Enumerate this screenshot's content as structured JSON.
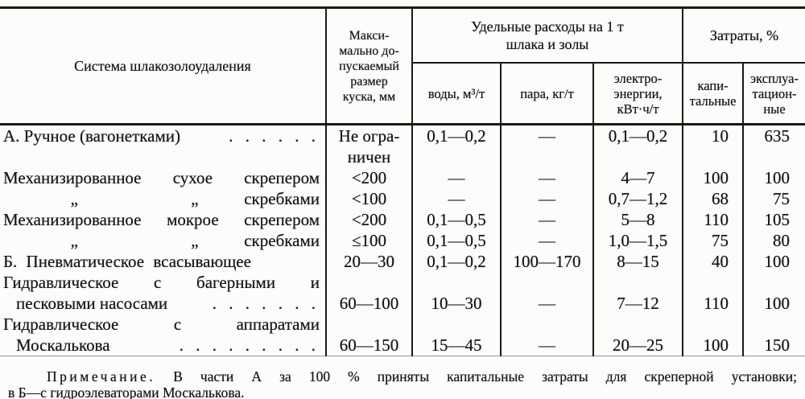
{
  "page": {
    "background": "#fcfcfa",
    "ink": "#181614"
  },
  "table": {
    "header": {
      "system": "Система шлакозолоудаления",
      "max_size": "Макси-\nмально до-\nпускаемый\nразмер\nкуска, мм",
      "specific_group": "Удельные расходы на 1 т\nшлака и золы",
      "water": "воды, м³/т",
      "steam": "пара, кг/т",
      "power": "электро-\nэнергии,\nкВт·ч/т",
      "costs_group": "Затраты, %",
      "capital": "капи-\nтальные",
      "operational": "эксплуа-\nтацион-\nные"
    },
    "rows": [
      {
        "system": [
          {
            "text": "А. Ручное (вагонетками)",
            "leader": ". . . . . ."
          }
        ],
        "size": "Не огра-\nничен",
        "water": "0,1—0,2",
        "steam": "—",
        "power": "0,1—0,2",
        "capital": "10",
        "operational": "635",
        "valign": "top"
      },
      {
        "system": [
          {
            "text": "Механизированное сухое скрепером",
            "justify": true
          }
        ],
        "size": "<200",
        "water": "—",
        "steam": "—",
        "power": "4—7",
        "capital": "100",
        "operational": "100"
      },
      {
        "system": [
          {
            "ditto": true,
            "marks": [
              "„",
              "„"
            ],
            "text": "скребками"
          }
        ],
        "size": "<100",
        "water": "—",
        "steam": "—",
        "power": "0,7—1,2",
        "capital": "68",
        "operational": "75"
      },
      {
        "system": [
          {
            "text": "Механизированное мокрое скрепером",
            "justify": true
          }
        ],
        "size": "<200",
        "water": "0,1—0,5",
        "steam": "—",
        "power": "5—8",
        "capital": "110",
        "operational": "105"
      },
      {
        "system": [
          {
            "ditto": true,
            "marks": [
              "„",
              "„"
            ],
            "text": "скребками"
          }
        ],
        "size": "≤100",
        "water": "0,1—0,5",
        "steam": "—",
        "power": "1,0—1,5",
        "capital": "75",
        "operational": "80"
      },
      {
        "system": [
          {
            "text": "Б. Пневматическое всасывающее",
            "spread": true
          }
        ],
        "size": "20—30",
        "water": "0,1—0,2",
        "steam": "100—170",
        "power": "8—15",
        "capital": "40",
        "operational": "100"
      },
      {
        "system": [
          {
            "text": "Гидравлическое с багерными и",
            "justify": true
          },
          {
            "text": "песковыми насосами",
            "leader": ". . . . . . .",
            "indent": true
          }
        ],
        "size": "60—100",
        "water": "10—30",
        "steam": "—",
        "power": "7—12",
        "capital": "110",
        "operational": "100",
        "valign": "bottom"
      },
      {
        "system": [
          {
            "text": "Гидравлическое с аппаратами",
            "justify": true
          },
          {
            "text": "Москалькова",
            "leader": ". . . . . . . . .",
            "indent": true
          }
        ],
        "size": "60—150",
        "water": "15—45",
        "steam": "—",
        "power": "20—25",
        "capital": "100",
        "operational": "150",
        "valign": "bottom"
      }
    ]
  },
  "note": {
    "label": "Примечание.",
    "line1_rest": "В части А за 100 % приняты капитальные затраты для скреперной установки;",
    "line2": "в Б—с гидроэлеваторами Москалькова."
  }
}
